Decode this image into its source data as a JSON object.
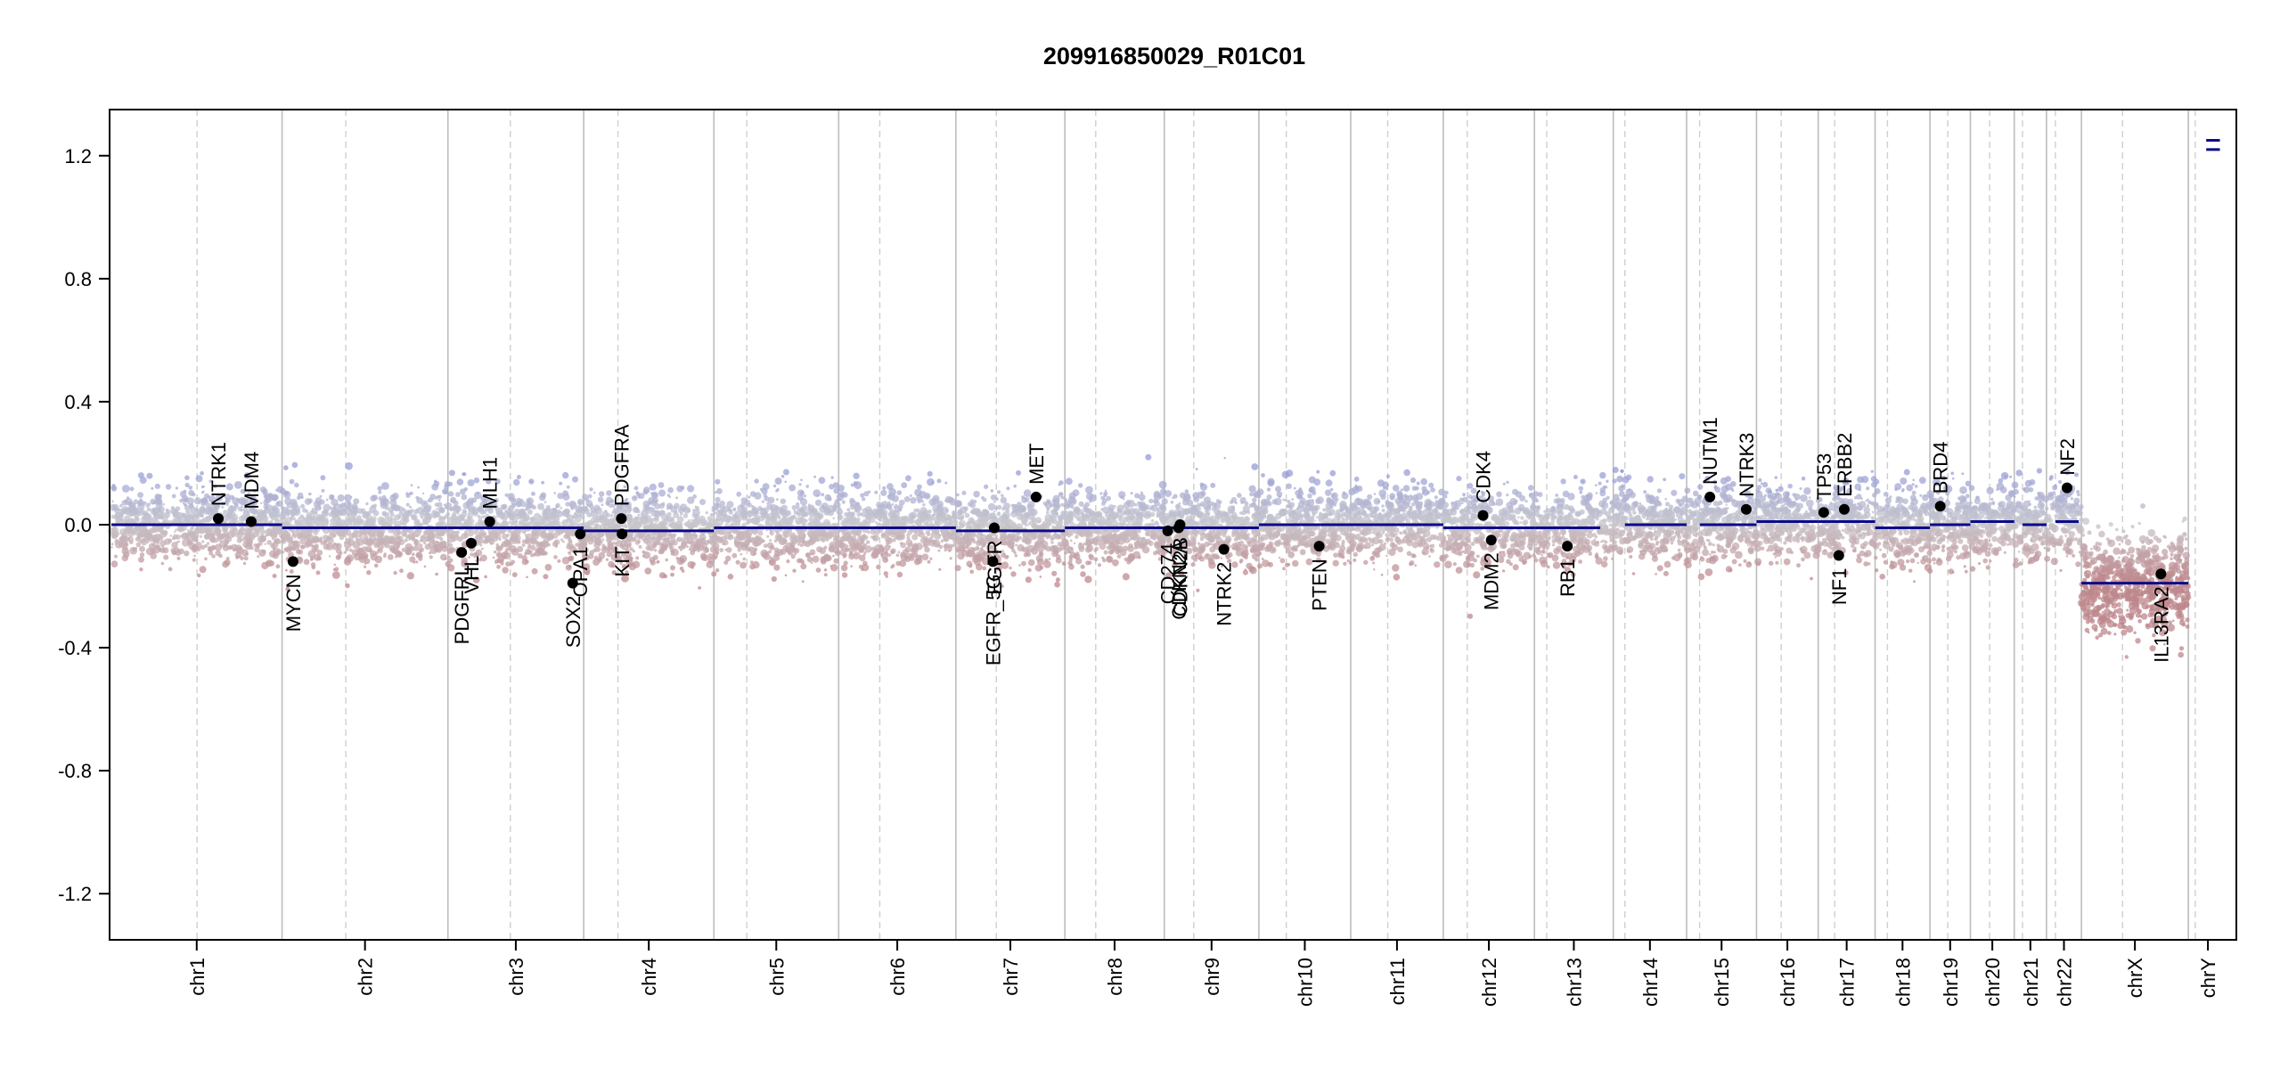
{
  "chart_data": {
    "type": "scatter",
    "title": "209916850029_R01C01",
    "xlabel": "",
    "ylabel": "",
    "ylim": [
      -1.35,
      1.35
    ],
    "y_ticks": [
      "1.2",
      "0.8",
      "0.4",
      "0.0",
      "-0.4",
      "-0.8",
      "-1.2"
    ],
    "chromosomes": [
      {
        "name": "chr1",
        "start": 0,
        "end": 249,
        "centromere": 125
      },
      {
        "name": "chr2",
        "start": 249,
        "end": 491,
        "centromere": 342
      },
      {
        "name": "chr3",
        "start": 491,
        "end": 689,
        "centromere": 582
      },
      {
        "name": "chr4",
        "start": 689,
        "end": 879,
        "centromere": 739
      },
      {
        "name": "chr5",
        "start": 879,
        "end": 1061,
        "centromere": 927
      },
      {
        "name": "chr6",
        "start": 1061,
        "end": 1232,
        "centromere": 1121
      },
      {
        "name": "chr7",
        "start": 1232,
        "end": 1391,
        "centromere": 1291
      },
      {
        "name": "chr8",
        "start": 1391,
        "end": 1536,
        "centromere": 1436
      },
      {
        "name": "chr9",
        "start": 1536,
        "end": 1674,
        "centromere": 1579
      },
      {
        "name": "chr10",
        "start": 1674,
        "end": 1808,
        "centromere": 1714
      },
      {
        "name": "chr11",
        "start": 1808,
        "end": 1943,
        "centromere": 1862
      },
      {
        "name": "chr12",
        "start": 1943,
        "end": 2076,
        "centromere": 1978
      },
      {
        "name": "chr13",
        "start": 2076,
        "end": 2191,
        "centromere": 2094
      },
      {
        "name": "chr14",
        "start": 2191,
        "end": 2298,
        "centromere": 2208
      },
      {
        "name": "chr15",
        "start": 2298,
        "end": 2400,
        "centromere": 2317
      },
      {
        "name": "chr16",
        "start": 2400,
        "end": 2490,
        "centromere": 2436
      },
      {
        "name": "chr17",
        "start": 2490,
        "end": 2573,
        "centromere": 2514
      },
      {
        "name": "chr18",
        "start": 2573,
        "end": 2653,
        "centromere": 2591
      },
      {
        "name": "chr19",
        "start": 2653,
        "end": 2712,
        "centromere": 2679
      },
      {
        "name": "chr20",
        "start": 2712,
        "end": 2776,
        "centromere": 2740
      },
      {
        "name": "chr21",
        "start": 2776,
        "end": 2823,
        "centromere": 2788
      },
      {
        "name": "chr22",
        "start": 2823,
        "end": 2874,
        "centromere": 2836
      },
      {
        "name": "chrX",
        "start": 2874,
        "end": 3030,
        "centromere": 2934
      },
      {
        "name": "chrY",
        "start": 3030,
        "end": 3087,
        "centromere": 3040
      }
    ],
    "segments": [
      {
        "chr": "chr1",
        "start": 0,
        "end": 249,
        "value": 0.0
      },
      {
        "chr": "chr2",
        "start": 249,
        "end": 491,
        "value": -0.01
      },
      {
        "chr": "chr3",
        "start": 491,
        "end": 689,
        "value": -0.01
      },
      {
        "chr": "chr4",
        "start": 689,
        "end": 879,
        "value": -0.02
      },
      {
        "chr": "chr5",
        "start": 879,
        "end": 1061,
        "value": -0.01
      },
      {
        "chr": "chr6",
        "start": 1061,
        "end": 1232,
        "value": -0.01
      },
      {
        "chr": "chr7",
        "start": 1232,
        "end": 1391,
        "value": -0.02
      },
      {
        "chr": "chr8",
        "start": 1391,
        "end": 1536,
        "value": -0.01
      },
      {
        "chr": "chr9",
        "start": 1536,
        "end": 1674,
        "value": -0.01
      },
      {
        "chr": "chr10",
        "start": 1674,
        "end": 1808,
        "value": 0.0
      },
      {
        "chr": "chr11",
        "start": 1808,
        "end": 1943,
        "value": 0.0
      },
      {
        "chr": "chr12",
        "start": 1943,
        "end": 2076,
        "value": -0.01
      },
      {
        "chr": "chr13",
        "start": 2076,
        "end": 2172,
        "value": -0.01
      },
      {
        "chr": "chr14",
        "start": 2208,
        "end": 2298,
        "value": 0.0
      },
      {
        "chr": "chr15",
        "start": 2317,
        "end": 2400,
        "value": 0.0
      },
      {
        "chr": "chr16",
        "start": 2400,
        "end": 2490,
        "value": 0.01
      },
      {
        "chr": "chr17",
        "start": 2490,
        "end": 2573,
        "value": 0.01
      },
      {
        "chr": "chr18",
        "start": 2573,
        "end": 2653,
        "value": -0.01
      },
      {
        "chr": "chr19",
        "start": 2653,
        "end": 2712,
        "value": 0.0
      },
      {
        "chr": "chr20",
        "start": 2712,
        "end": 2776,
        "value": 0.01
      },
      {
        "chr": "chr21",
        "start": 2788,
        "end": 2823,
        "value": 0.0
      },
      {
        "chr": "chr22",
        "start": 2836,
        "end": 2870,
        "value": 0.01
      },
      {
        "chr": "chrX",
        "start": 2874,
        "end": 3030,
        "value": -0.19
      },
      {
        "chr": "chrY",
        "start": 3056,
        "end": 3076,
        "value": 1.22
      },
      {
        "chr": "chrY",
        "start": 3056,
        "end": 3076,
        "value": 1.25
      }
    ],
    "genes": [
      {
        "name": "NTRK1",
        "pos": 156,
        "value": 0.02,
        "label": "above"
      },
      {
        "name": "MDM4",
        "pos": 204,
        "value": 0.01,
        "label": "above"
      },
      {
        "name": "MYCN",
        "pos": 265,
        "value": -0.12,
        "label": "below"
      },
      {
        "name": "PDGFRL",
        "pos": 511,
        "value": -0.09,
        "label": "below"
      },
      {
        "name": "VHL",
        "pos": 525,
        "value": -0.06,
        "label": "below"
      },
      {
        "name": "MLH1",
        "pos": 552,
        "value": 0.01,
        "label": "above"
      },
      {
        "name": "SOX2",
        "pos": 673,
        "value": -0.19,
        "label": "below"
      },
      {
        "name": "OPA1",
        "pos": 684,
        "value": -0.03,
        "label": "below"
      },
      {
        "name": "PDGFRA",
        "pos": 744,
        "value": 0.02,
        "label": "above"
      },
      {
        "name": "KIT",
        "pos": 745,
        "value": -0.03,
        "label": "below"
      },
      {
        "name": "EGFR_5G",
        "pos": 1286,
        "value": -0.12,
        "label": "below"
      },
      {
        "name": "EGFR",
        "pos": 1288,
        "value": -0.01,
        "label": "below"
      },
      {
        "name": "MET",
        "pos": 1349,
        "value": 0.09,
        "label": "above"
      },
      {
        "name": "CD274",
        "pos": 1541,
        "value": -0.02,
        "label": "below"
      },
      {
        "name": "CDKN2A",
        "pos": 1557,
        "value": -0.01,
        "label": "below"
      },
      {
        "name": "CDKN2B",
        "pos": 1559,
        "value": 0.0,
        "label": "below"
      },
      {
        "name": "NTRK2",
        "pos": 1623,
        "value": -0.08,
        "label": "below"
      },
      {
        "name": "PTEN",
        "pos": 1762,
        "value": -0.07,
        "label": "below"
      },
      {
        "name": "CDK4",
        "pos": 2001,
        "value": 0.03,
        "label": "above"
      },
      {
        "name": "MDM2",
        "pos": 2013,
        "value": -0.05,
        "label": "below"
      },
      {
        "name": "RB1",
        "pos": 2124,
        "value": -0.07,
        "label": "below"
      },
      {
        "name": "NUTM1",
        "pos": 2332,
        "value": 0.09,
        "label": "above"
      },
      {
        "name": "NTRK3",
        "pos": 2385,
        "value": 0.05,
        "label": "above"
      },
      {
        "name": "TP53",
        "pos": 2498,
        "value": 0.04,
        "label": "above"
      },
      {
        "name": "NF1",
        "pos": 2520,
        "value": -0.1,
        "label": "below"
      },
      {
        "name": "ERBB2",
        "pos": 2528,
        "value": 0.05,
        "label": "above"
      },
      {
        "name": "BRD4",
        "pos": 2668,
        "value": 0.06,
        "label": "above"
      },
      {
        "name": "NF2",
        "pos": 2853,
        "value": 0.12,
        "label": "above"
      },
      {
        "name": "IL13RA2",
        "pos": 2990,
        "value": -0.16,
        "label": "below"
      }
    ],
    "grid": false,
    "legend": "none"
  }
}
